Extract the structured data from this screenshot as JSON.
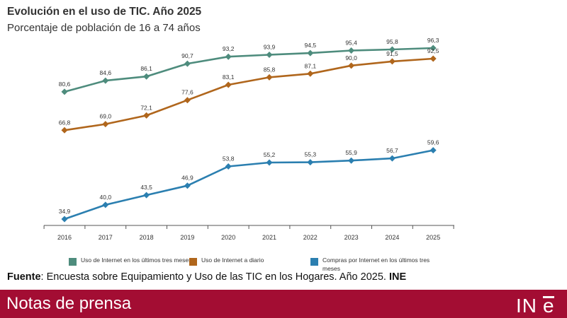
{
  "chart_data": {
    "type": "line",
    "title": "Evolución en el uso de TIC. Año 2025",
    "subtitle": "Porcentaje de población de 16 a 74 años",
    "x": [
      "2016",
      "2017",
      "2018",
      "2019",
      "2020",
      "2021",
      "2022",
      "2023",
      "2024",
      "2025"
    ],
    "series": [
      {
        "name": "Uso de Internet en los últimos tres meses",
        "values": [
          80.6,
          84.6,
          86.1,
          90.7,
          93.2,
          93.9,
          94.5,
          95.4,
          95.8,
          96.3
        ],
        "labels": [
          "80,6",
          "84,6",
          "86,1",
          "90,7",
          "93,2",
          "93,9",
          "94,5",
          "95,4",
          "95,8",
          "96,3"
        ],
        "color": "#4e8c7d"
      },
      {
        "name": "Uso de Internet a diario",
        "values": [
          66.8,
          69.0,
          72.1,
          77.6,
          83.1,
          85.8,
          87.1,
          90.0,
          91.5,
          92.5
        ],
        "labels": [
          "66,8",
          "69,0",
          "72,1",
          "77,6",
          "83,1",
          "85,8",
          "87,1",
          "90,0",
          "91,5",
          "92,5"
        ],
        "color": "#b0661c"
      },
      {
        "name": "Compras por Internet en los últimos tres meses",
        "values": [
          34.9,
          40.0,
          43.5,
          46.9,
          53.8,
          55.2,
          55.3,
          55.9,
          56.7,
          59.6
        ],
        "labels": [
          "34,9",
          "40,0",
          "43,5",
          "46,9",
          "53,8",
          "55,2",
          "55,3",
          "55,9",
          "56,7",
          "59,6"
        ],
        "color": "#2b7fb0"
      }
    ],
    "grid": false,
    "legend_position": "bottom"
  },
  "source": {
    "label": "Fuente",
    "text": ": Encuesta sobre Equipamiento y Uso de las TIC en los Hogares. Año 2025. ",
    "org": "INE"
  },
  "footer": {
    "title": "Notas de prensa",
    "logo_text": "INE",
    "color": "#a30d33"
  }
}
